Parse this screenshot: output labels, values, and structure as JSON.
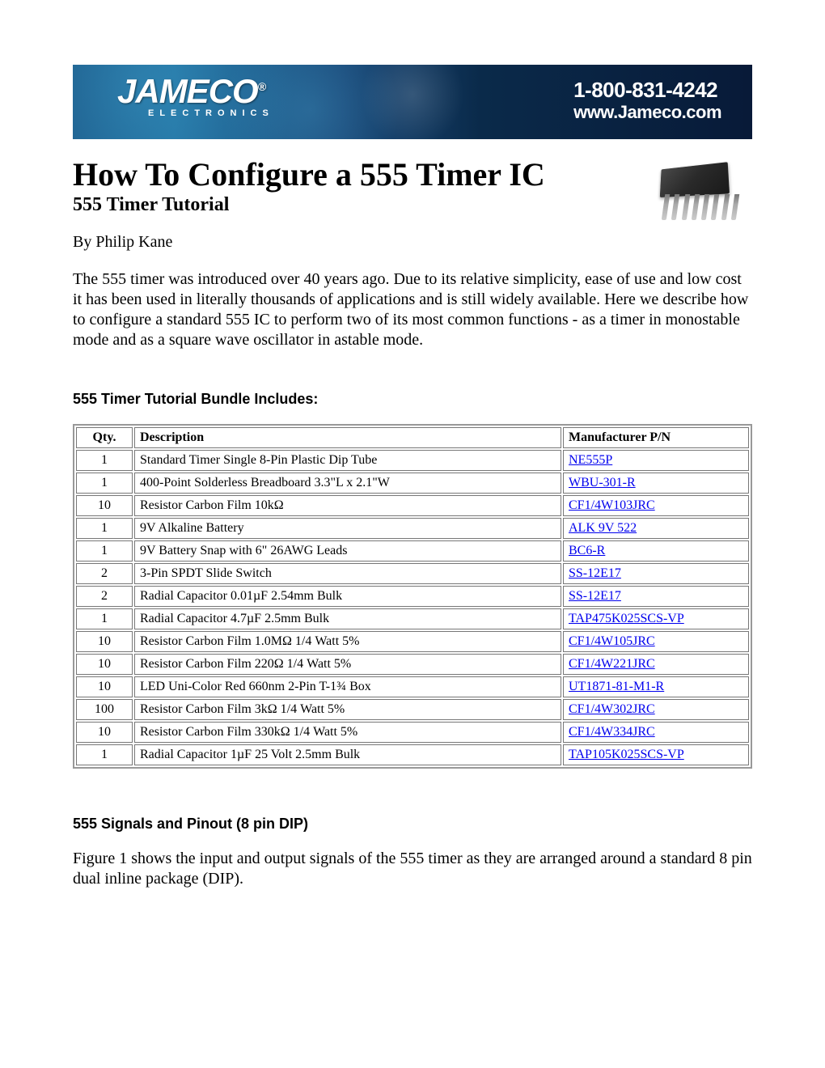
{
  "banner": {
    "logo_main": "JAMECO",
    "logo_reg": "®",
    "logo_sub": "ELECTRONICS",
    "phone": "1-800-831-4242",
    "website": "www.Jameco.com",
    "bg_gradient": [
      "#1a5a8a",
      "#0a2a4a"
    ]
  },
  "title": "How To Configure a 555 Timer IC",
  "subtitle": "555 Timer Tutorial",
  "byline": "By Philip Kane",
  "intro": "The 555 timer was introduced over 40 years ago. Due to its relative simplicity, ease of use and low cost it has been used in literally thousands of applications and is still widely available. Here we describe how to configure a standard 555 IC to perform two of its most common functions - as a timer in monostable mode and as a square wave oscillator in astable mode.",
  "bundle_heading": "555 Timer Tutorial Bundle Includes:",
  "table": {
    "columns": [
      "Qty.",
      "Description",
      "Manufacturer P/N"
    ],
    "rows": [
      {
        "qty": "1",
        "desc": "Standard Timer Single 8-Pin Plastic Dip Tube",
        "pn": "NE555P"
      },
      {
        "qty": "1",
        "desc": "400-Point Solderless Breadboard 3.3\"L x 2.1\"W",
        "pn": "WBU-301-R"
      },
      {
        "qty": "10",
        "desc": "Resistor Carbon Film 10kΩ",
        "pn": "CF1/4W103JRC"
      },
      {
        "qty": "1",
        "desc": "9V Alkaline Battery",
        "pn": "ALK 9V 522"
      },
      {
        "qty": "1",
        "desc": "9V Battery Snap with 6\" 26AWG Leads",
        "pn": "BC6-R"
      },
      {
        "qty": "2",
        "desc": "3-Pin SPDT Slide Switch",
        "pn": "SS-12E17"
      },
      {
        "qty": "2",
        "desc": "Radial Capacitor 0.01µF 2.54mm Bulk",
        "pn": "SS-12E17"
      },
      {
        "qty": "1",
        "desc": "Radial Capacitor 4.7µF 2.5mm Bulk",
        "pn": "TAP475K025SCS-VP"
      },
      {
        "qty": "10",
        "desc": "Resistor Carbon Film 1.0MΩ 1/4 Watt 5%",
        "pn": "CF1/4W105JRC"
      },
      {
        "qty": "10",
        "desc": "Resistor Carbon Film 220Ω 1/4 Watt 5%",
        "pn": "CF1/4W221JRC"
      },
      {
        "qty": "10",
        "desc": "LED Uni-Color Red 660nm 2-Pin T-1¾ Box",
        "pn": "UT1871-81-M1-R"
      },
      {
        "qty": "100",
        "desc": "Resistor Carbon Film 3kΩ 1/4 Watt 5%",
        "pn": "CF1/4W302JRC"
      },
      {
        "qty": "10",
        "desc": "Resistor Carbon Film 330kΩ 1/4 Watt 5%",
        "pn": "CF1/4W334JRC"
      },
      {
        "qty": "1",
        "desc": "Radial Capacitor 1µF 25 Volt 2.5mm Bulk",
        "pn": "TAP105K025SCS-VP"
      }
    ]
  },
  "section2_heading": "555 Signals and Pinout (8 pin DIP)",
  "section2_body": "Figure 1 shows the input and output signals of the 555 timer as they are arranged around a standard 8 pin dual inline package (DIP).",
  "colors": {
    "link": "#0000ee",
    "text": "#000000",
    "border": "#777777"
  }
}
